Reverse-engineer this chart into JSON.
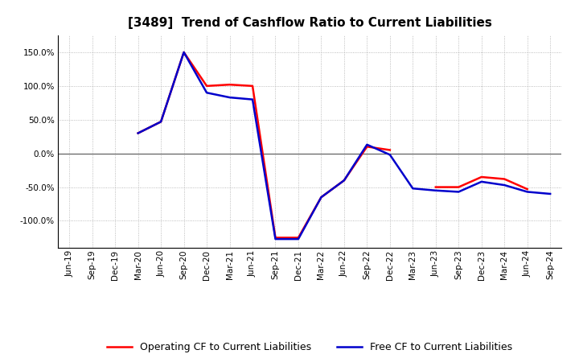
{
  "title": "[3489]  Trend of Cashflow Ratio to Current Liabilities",
  "x_labels": [
    "Jun-19",
    "Sep-19",
    "Dec-19",
    "Mar-20",
    "Jun-20",
    "Sep-20",
    "Dec-20",
    "Mar-21",
    "Jun-21",
    "Sep-21",
    "Dec-21",
    "Mar-22",
    "Jun-22",
    "Sep-22",
    "Dec-22",
    "Mar-23",
    "Jun-23",
    "Sep-23",
    "Dec-23",
    "Mar-24",
    "Jun-24",
    "Sep-24"
  ],
  "operating_cf": [
    null,
    null,
    null,
    30,
    47,
    150,
    100,
    102,
    100,
    -125,
    -125,
    -65,
    -40,
    10,
    5,
    null,
    -50,
    -50,
    -35,
    -38,
    -53,
    null
  ],
  "free_cf": [
    null,
    null,
    null,
    30,
    47,
    150,
    90,
    83,
    80,
    -127,
    -127,
    -65,
    -40,
    13,
    -2,
    -52,
    -55,
    -57,
    -42,
    -47,
    -57,
    -60
  ],
  "operating_color": "#ff0000",
  "free_color": "#0000cc",
  "ylim": [
    -140,
    175
  ],
  "yticks": [
    -100,
    -50,
    0,
    50,
    100,
    150
  ],
  "background_color": "#ffffff",
  "grid_color": "#aaaaaa",
  "zero_line_color": "#555555",
  "title_fontsize": 11,
  "tick_fontsize": 7.5,
  "legend_fontsize": 9,
  "linewidth": 1.8
}
